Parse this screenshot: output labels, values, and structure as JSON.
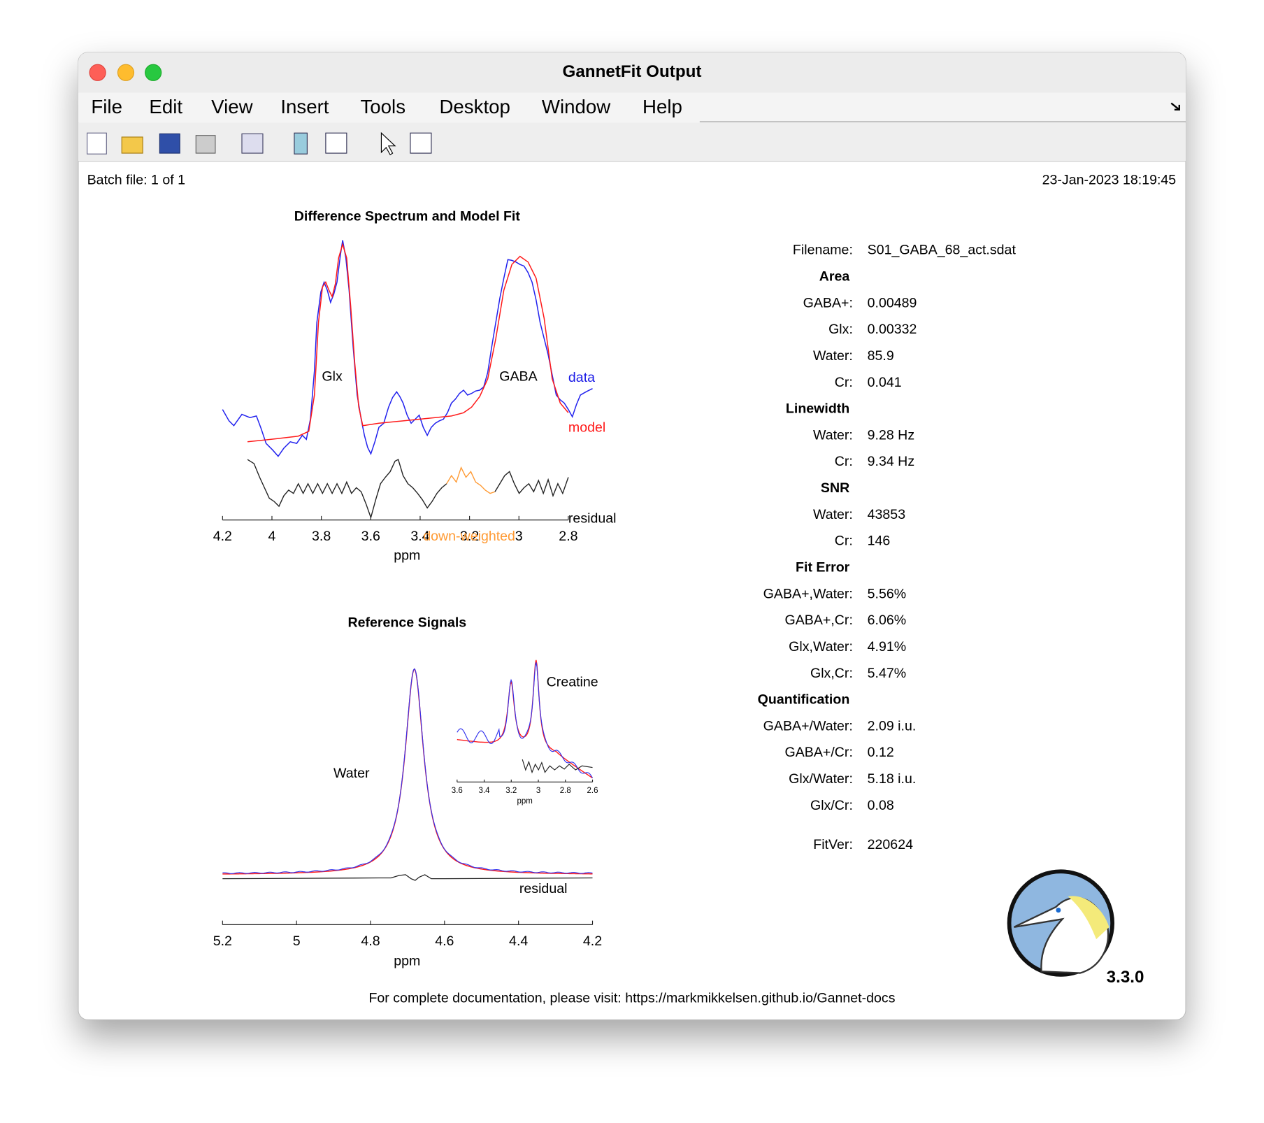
{
  "window": {
    "title": "GannetFit Output"
  },
  "menu": [
    "File",
    "Edit",
    "View",
    "Insert",
    "Tools",
    "Desktop",
    "Window",
    "Help"
  ],
  "header": {
    "batch": "Batch file: 1 of 1",
    "date": "23-Jan-2023 18:19:45"
  },
  "difference_plot": {
    "title": "Difference Spectrum and Model Fit",
    "peak_labels": [
      "Glx",
      "GABA"
    ],
    "legend": {
      "data": "data",
      "model": "model",
      "residual": "residual",
      "down_weighted": "down-weighted"
    },
    "xticks": [
      "4.2",
      "4",
      "3.8",
      "3.6",
      "3.4",
      "3.2",
      "3",
      "2.8"
    ],
    "xlabel": "ppm"
  },
  "reference_plot": {
    "title": "Reference Signals",
    "water_label": "Water",
    "residual": "residual",
    "xticks": [
      "5.2",
      "5",
      "4.8",
      "4.6",
      "4.4",
      "4.2"
    ],
    "xlabel": "ppm",
    "inset": {
      "label": "Creatine",
      "xticks": [
        "3.6",
        "3.4",
        "3.2",
        "3",
        "2.8",
        "2.6"
      ],
      "xlabel": "ppm"
    }
  },
  "results": [
    {
      "label": "Filename:",
      "value": "S01_GABA_68_act.sdat"
    },
    {
      "heading": "Area"
    },
    {
      "label": "GABA+:",
      "value": "0.00489"
    },
    {
      "label": "Glx:",
      "value": "0.00332"
    },
    {
      "label": "Water:",
      "value": "85.9"
    },
    {
      "label": "Cr:",
      "value": "0.041"
    },
    {
      "heading": "Linewidth"
    },
    {
      "label": "Water:",
      "value": "9.28 Hz"
    },
    {
      "label": "Cr:",
      "value": "9.34 Hz"
    },
    {
      "heading": "SNR"
    },
    {
      "label": "Water:",
      "value": "43853"
    },
    {
      "label": "Cr:",
      "value": "146"
    },
    {
      "heading": "Fit Error"
    },
    {
      "label": "GABA+,Water:",
      "value": "5.56%"
    },
    {
      "label": "GABA+,Cr:",
      "value": "6.06%"
    },
    {
      "label": "Glx,Water:",
      "value": "4.91%"
    },
    {
      "label": "Glx,Cr:",
      "value": "5.47%"
    },
    {
      "heading": "Quantification"
    },
    {
      "label": "GABA+/Water:",
      "value": "2.09 i.u."
    },
    {
      "label": "GABA+/Cr:",
      "value": "0.12"
    },
    {
      "label": "Glx/Water:",
      "value": "5.18 i.u."
    },
    {
      "label": "Glx/Cr:",
      "value": "0.08"
    },
    {
      "label": "FitVer:",
      "value": "220624"
    }
  ],
  "version": "3.3.0",
  "footer": "For complete documentation, please visit: https://markmikkelsen.github.io/Gannet-docs"
}
